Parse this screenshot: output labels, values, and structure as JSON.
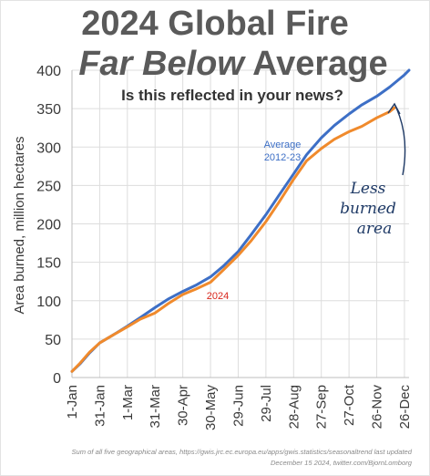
{
  "title": {
    "line1": "2024 Global Fire",
    "line2_emphasis": "Far Below",
    "line2_rest": " Average"
  },
  "subtitle": "Is this reflected in your news?",
  "annotation": {
    "line1": "Less",
    "line2": "burned",
    "line3": "area"
  },
  "footnote": {
    "line1": "Sum of all five geographical areas, https://gwis.jrc.ec.europa.eu/apps/gwis.statistics/seasonaltrend last updated",
    "line2": "December 15 2024, twitter.com/BjornLomborg"
  },
  "colors": {
    "average": "#3d6fc6",
    "y2024": "#f08a2c",
    "label2024": "#d9261c",
    "grid": "#dddddd",
    "annotation": "#1f3a66"
  },
  "chart_data": {
    "type": "line",
    "ylabel": "Area burned, million hectares",
    "xlabel": "",
    "ylim": [
      0,
      400
    ],
    "yticks": [
      0,
      50,
      100,
      150,
      200,
      250,
      300,
      350,
      400
    ],
    "xlim": [
      1,
      366
    ],
    "xticks": [
      {
        "label": "1-Jan",
        "day": 1
      },
      {
        "label": "31-Jan",
        "day": 31
      },
      {
        "label": "1-Mar",
        "day": 61
      },
      {
        "label": "31-Mar",
        "day": 91
      },
      {
        "label": "30-Apr",
        "day": 121
      },
      {
        "label": "30-May",
        "day": 151
      },
      {
        "label": "29-Jun",
        "day": 181
      },
      {
        "label": "29-Jul",
        "day": 211
      },
      {
        "label": "28-Aug",
        "day": 241
      },
      {
        "label": "27-Sep",
        "day": 271
      },
      {
        "label": "27-Oct",
        "day": 301
      },
      {
        "label": "26-Nov",
        "day": 331
      },
      {
        "label": "26-Dec",
        "day": 361
      }
    ],
    "grid": true,
    "series": [
      {
        "name": "Average\n2012-23",
        "color": "#3d6fc6",
        "x": [
          1,
          10,
          20,
          31,
          45,
          61,
          75,
          91,
          105,
          121,
          135,
          151,
          165,
          181,
          195,
          211,
          225,
          241,
          255,
          271,
          285,
          301,
          315,
          331,
          345,
          361,
          366
        ],
        "y": [
          8,
          18,
          32,
          45,
          55,
          67,
          78,
          91,
          102,
          112,
          120,
          131,
          145,
          164,
          186,
          212,
          237,
          265,
          290,
          312,
          328,
          343,
          355,
          366,
          378,
          394,
          400
        ]
      },
      {
        "name": "2024",
        "color": "#f08a2c",
        "x": [
          1,
          10,
          20,
          31,
          45,
          61,
          75,
          91,
          105,
          121,
          135,
          151,
          165,
          181,
          195,
          211,
          225,
          241,
          255,
          271,
          285,
          301,
          315,
          331,
          345,
          350
        ],
        "y": [
          8,
          19,
          33,
          45,
          55,
          66,
          76,
          84,
          96,
          108,
          115,
          124,
          140,
          159,
          178,
          203,
          228,
          258,
          282,
          298,
          310,
          320,
          327,
          338,
          346,
          351
        ]
      }
    ]
  }
}
